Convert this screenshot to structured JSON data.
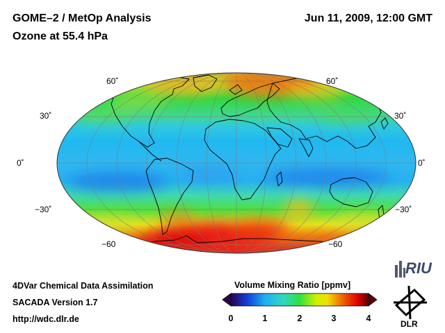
{
  "header": {
    "title": "GOME–2 / MetOp Analysis",
    "subtitle": "Ozone at 55.4 hPa",
    "datetime": "Jun 11, 2009, 12:00 GMT"
  },
  "map": {
    "projection": "Mollweide",
    "latitude_labels_left": [
      "60˚",
      "30˚",
      "0˚",
      "−30˚",
      "−60"
    ],
    "latitude_labels_right": [
      "60˚",
      "30˚",
      "0˚",
      "−30˚",
      "−60"
    ]
  },
  "colorbar": {
    "title": "Volume Mixing Ratio [ppmv]",
    "ticks": [
      "0",
      "1",
      "2",
      "3",
      "4"
    ],
    "range": [
      0,
      4
    ],
    "colors": [
      "#2a0050",
      "#1040d8",
      "#20c8f0",
      "#30e040",
      "#f0f000",
      "#f07000",
      "#e00000",
      "#600000"
    ]
  },
  "footer": {
    "line1": "4DVar Chemical Data Assimilation",
    "line2": "SACADA Version 1.7",
    "line3": "http://wdc.dlr.de"
  },
  "logos": {
    "riu": "RIU",
    "dlr": "DLR"
  }
}
